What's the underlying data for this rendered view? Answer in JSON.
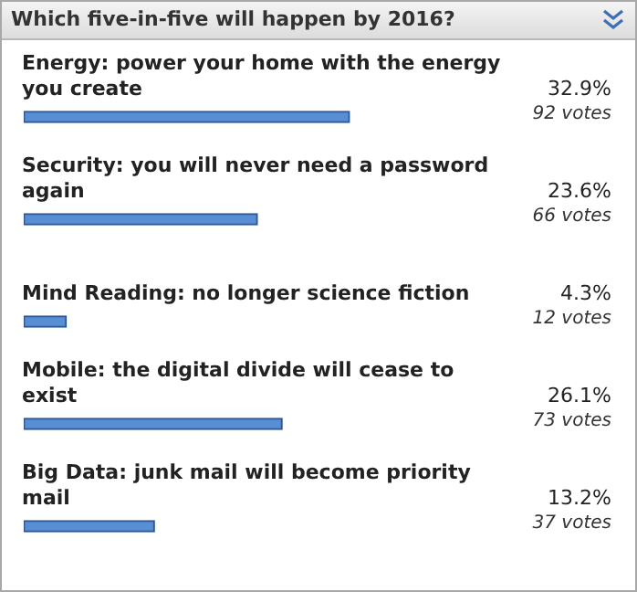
{
  "chart_data": {
    "type": "bar",
    "orientation": "horizontal",
    "title": "Which five-in-five will happen by 2016?",
    "categories": [
      "Energy: power your home with the energy you create",
      "Security: you will never need a password again",
      "Mind Reading: no longer science fiction",
      "Mobile: the digital divide will cease to exist",
      "Big Data: junk mail will become priority mail"
    ],
    "values": [
      32.9,
      23.6,
      4.3,
      26.1,
      13.2
    ],
    "value_labels": [
      "32.9%",
      "23.6%",
      "4.3%",
      "26.1%",
      "13.2%"
    ],
    "annotations": [
      "92 votes",
      "66 votes",
      "12 votes",
      "73 votes",
      "37 votes"
    ],
    "color": "#5a8ed4"
  }
}
